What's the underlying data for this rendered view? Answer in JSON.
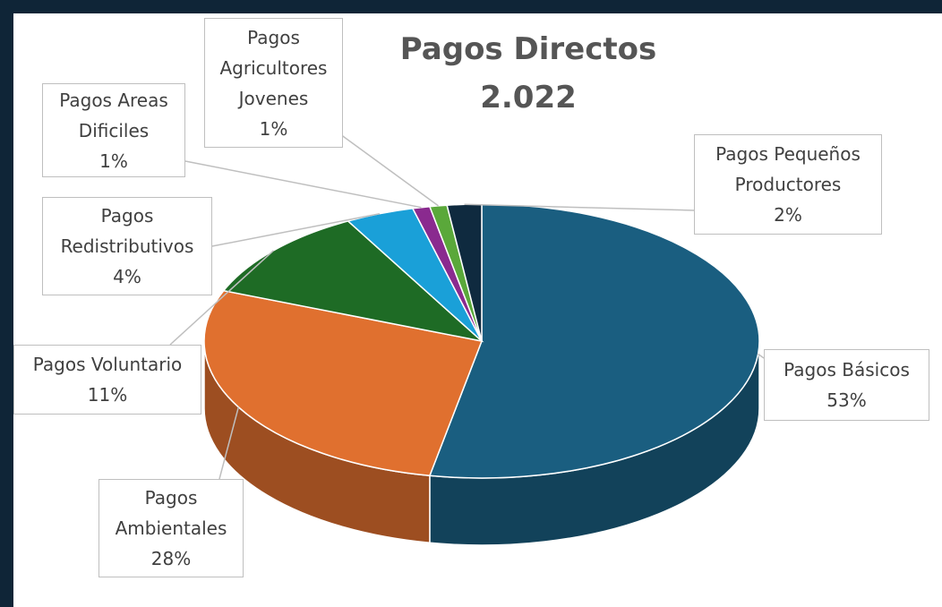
{
  "chart_data": {
    "type": "pie",
    "title": "Pagos Directos 2.022",
    "categories": [
      "Pagos Básicos",
      "Pagos Ambientales",
      "Pagos Voluntario",
      "Pagos Redistributivos",
      "Pagos Areas Dificiles",
      "Pagos Agricultores Jovenes",
      "Pagos Pequeños Productores"
    ],
    "values": [
      53,
      28,
      11,
      4,
      1,
      1,
      2
    ],
    "value_labels": [
      "53%",
      "28%",
      "11%",
      "4%",
      "1%",
      "1%",
      "2%"
    ],
    "colors": [
      "#1a5e80",
      "#e0702f",
      "#1e6b25",
      "#1aa0d8",
      "#8a2a8f",
      "#5aa83a",
      "#0f2a3f"
    ]
  }
}
